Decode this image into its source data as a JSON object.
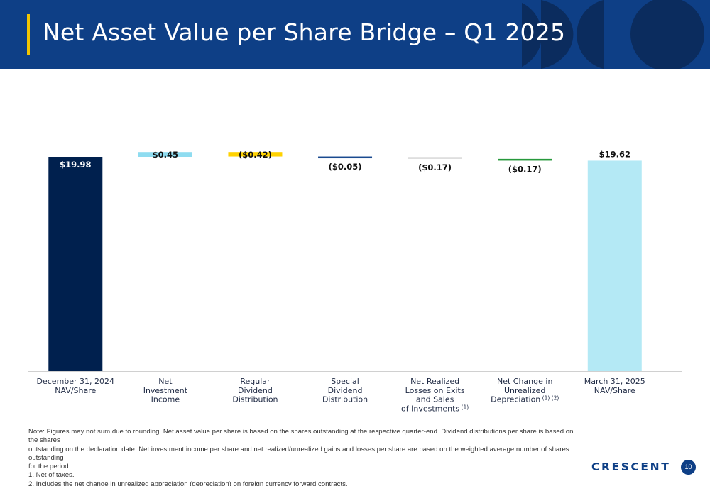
{
  "header": {
    "title": "Net Asset Value per Share Bridge – Q1 2025"
  },
  "colors": {
    "header_bg": "#0e3f86",
    "accent": "#f2c500",
    "deco_dark": "#0b2c5e",
    "deco_mid": "#102f63",
    "navy": "#00204e",
    "light_blue": "#8fdcf0",
    "yellow": "#ffd200",
    "dark_blue": "#1a4a8f",
    "grey": "#d9d9d9",
    "green": "#27993c",
    "pale_blue": "#b4e9f5"
  },
  "chart_data": {
    "type": "bar",
    "subtype": "waterfall",
    "title": "",
    "xlabel": "",
    "ylabel": "",
    "categories": [
      [
        "December 31, 2024",
        "NAV/Share"
      ],
      [
        "Net",
        "Investment",
        "Income"
      ],
      [
        "Regular",
        "Dividend",
        "Distribution"
      ],
      [
        "Special",
        "Dividend",
        "Distribution"
      ],
      [
        "Net Realized",
        "Losses on Exits",
        "and Sales",
        "of Investments"
      ],
      [
        "Net Change in",
        "Unrealized",
        "Depreciation"
      ],
      [
        "March 31, 2025",
        "NAV/Share"
      ]
    ],
    "category_footnotes": [
      "",
      "",
      "",
      "",
      "(1)",
      "(1) (2)",
      ""
    ],
    "values": [
      19.98,
      0.45,
      -0.42,
      -0.05,
      -0.17,
      -0.17,
      19.62
    ],
    "data_labels": [
      "$19.98",
      "$0.45",
      "($0.42)",
      "($0.05)",
      "($0.17)",
      "($0.17)",
      "$19.62"
    ],
    "bar_kinds": [
      "total",
      "delta",
      "delta",
      "delta",
      "delta",
      "delta",
      "total"
    ],
    "bar_colors": [
      "#00204e",
      "#8fdcf0",
      "#ffd200",
      "#1a4a8f",
      "#d9d9d9",
      "#27993c",
      "#b4e9f5"
    ],
    "label_position": [
      "inside-top",
      "inside",
      "inside",
      "below",
      "below",
      "below",
      "above"
    ],
    "axis_visible": false,
    "grid": false,
    "legend": "none"
  },
  "notes": {
    "lines": [
      "Note: Figures may not sum due to rounding. Net asset value per share is based on the shares outstanding at the respective quarter-end. Dividend distributions per share is based on the shares",
      "outstanding on the declaration date. Net investment income per share and net realized/unrealized gains and losses per share are based on the weighted average number of shares outstanding",
      "for the period.",
      "1.  Net of taxes.",
      "2.  Includes the net change in unrealized appreciation (depreciation) on foreign currency forward contracts."
    ]
  },
  "footer": {
    "logo": "CRESCENT",
    "page_number": "10"
  }
}
